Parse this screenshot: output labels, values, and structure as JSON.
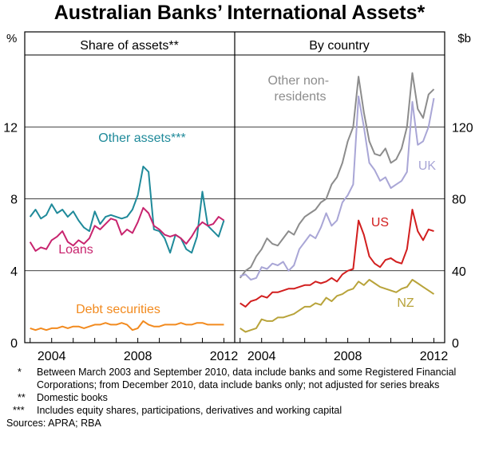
{
  "title": "Australian Banks’ International Assets*",
  "left_unit": "%",
  "right_unit": "$b",
  "footnotes": [
    {
      "mark": "*",
      "text": "Between March 2003 and September 2010, data include banks and some Registered Financial Corporations; from December 2010, data include banks only; not adjusted for series breaks"
    },
    {
      "mark": "**",
      "text": "Domestic books"
    },
    {
      "mark": "***",
      "text": "Includes equity shares, participations, derivatives and working capital"
    }
  ],
  "sources": "Sources: APRA; RBA",
  "chart_data": [
    {
      "type": "line",
      "panel_title": "Share of assets**",
      "xlim": [
        2002.75,
        2012.5
      ],
      "xticks": [
        2004,
        2008,
        2012
      ],
      "xtick_labels": [
        "2004",
        "2008",
        "2012"
      ],
      "ylim": [
        0,
        16
      ],
      "yticks": [
        0,
        4,
        8,
        12
      ],
      "ytick_labels": [
        "0",
        "4",
        "8",
        "12"
      ],
      "series": [
        {
          "name": "Other assets***",
          "color": "#1f8a9a",
          "x": [
            2003.0,
            2003.25,
            2003.5,
            2003.75,
            2004.0,
            2004.25,
            2004.5,
            2004.75,
            2005.0,
            2005.25,
            2005.5,
            2005.75,
            2006.0,
            2006.25,
            2006.5,
            2006.75,
            2007.0,
            2007.25,
            2007.5,
            2007.75,
            2008.0,
            2008.25,
            2008.5,
            2008.75,
            2009.0,
            2009.25,
            2009.5,
            2009.75,
            2010.0,
            2010.25,
            2010.5,
            2010.75,
            2011.0,
            2011.25,
            2011.5,
            2011.75,
            2012.0
          ],
          "values": [
            7.0,
            7.4,
            6.9,
            7.1,
            7.7,
            7.2,
            7.4,
            7.0,
            7.3,
            6.8,
            6.4,
            6.2,
            7.3,
            6.6,
            7.0,
            7.1,
            7.0,
            6.9,
            7.0,
            7.4,
            8.2,
            9.8,
            9.5,
            6.3,
            6.2,
            5.8,
            5.0,
            6.0,
            5.8,
            5.2,
            5.0,
            5.9,
            8.4,
            6.5,
            6.2,
            5.9,
            6.8
          ]
        },
        {
          "name": "Loans",
          "color": "#c8246e",
          "x": [
            2003.0,
            2003.25,
            2003.5,
            2003.75,
            2004.0,
            2004.25,
            2004.5,
            2004.75,
            2005.0,
            2005.25,
            2005.5,
            2005.75,
            2006.0,
            2006.25,
            2006.5,
            2006.75,
            2007.0,
            2007.25,
            2007.5,
            2007.75,
            2008.0,
            2008.25,
            2008.5,
            2008.75,
            2009.0,
            2009.25,
            2009.5,
            2009.75,
            2010.0,
            2010.25,
            2010.5,
            2010.75,
            2011.0,
            2011.25,
            2011.5,
            2011.75,
            2012.0
          ],
          "values": [
            5.6,
            5.1,
            5.3,
            5.2,
            5.7,
            5.9,
            6.2,
            5.6,
            5.4,
            5.7,
            5.5,
            5.8,
            6.5,
            6.3,
            6.6,
            6.9,
            6.8,
            6.0,
            6.3,
            6.1,
            6.7,
            7.5,
            7.2,
            6.5,
            6.3,
            6.0,
            5.9,
            6.0,
            5.8,
            5.5,
            5.9,
            6.4,
            6.7,
            6.5,
            6.6,
            7.0,
            6.8
          ]
        },
        {
          "name": "Debt securities",
          "color": "#f28a1e",
          "x": [
            2003.0,
            2003.25,
            2003.5,
            2003.75,
            2004.0,
            2004.25,
            2004.5,
            2004.75,
            2005.0,
            2005.25,
            2005.5,
            2005.75,
            2006.0,
            2006.25,
            2006.5,
            2006.75,
            2007.0,
            2007.25,
            2007.5,
            2007.75,
            2008.0,
            2008.25,
            2008.5,
            2008.75,
            2009.0,
            2009.25,
            2009.5,
            2009.75,
            2010.0,
            2010.25,
            2010.5,
            2010.75,
            2011.0,
            2011.25,
            2011.5,
            2011.75,
            2012.0
          ],
          "values": [
            0.8,
            0.7,
            0.8,
            0.7,
            0.8,
            0.8,
            0.9,
            0.8,
            0.9,
            0.9,
            0.8,
            0.9,
            1.0,
            1.0,
            1.1,
            1.0,
            1.0,
            1.1,
            1.0,
            0.7,
            0.8,
            1.2,
            1.0,
            0.9,
            0.9,
            1.0,
            1.0,
            1.0,
            1.1,
            1.0,
            1.0,
            1.1,
            1.1,
            1.0,
            1.0,
            1.0,
            1.0
          ]
        }
      ],
      "labels": [
        "Other assets***",
        "Loans",
        "Debt securities"
      ]
    },
    {
      "type": "line",
      "panel_title": "By country",
      "xlim": [
        2002.75,
        2012.5
      ],
      "xticks": [
        2004,
        2008,
        2012
      ],
      "xtick_labels": [
        "2004",
        "2008",
        "2012"
      ],
      "ylim": [
        0,
        160
      ],
      "yticks": [
        0,
        40,
        80,
        120
      ],
      "ytick_labels": [
        "0",
        "40",
        "80",
        "120"
      ],
      "series": [
        {
          "name": "Other non-residents",
          "color": "#8c8c8c",
          "x": [
            2003.0,
            2003.25,
            2003.5,
            2003.75,
            2004.0,
            2004.25,
            2004.5,
            2004.75,
            2005.0,
            2005.25,
            2005.5,
            2005.75,
            2006.0,
            2006.25,
            2006.5,
            2006.75,
            2007.0,
            2007.25,
            2007.5,
            2007.75,
            2008.0,
            2008.25,
            2008.5,
            2008.75,
            2009.0,
            2009.25,
            2009.5,
            2009.75,
            2010.0,
            2010.25,
            2010.5,
            2010.75,
            2011.0,
            2011.25,
            2011.5,
            2011.75,
            2012.0
          ],
          "values": [
            36,
            40,
            42,
            48,
            52,
            58,
            55,
            54,
            58,
            62,
            60,
            66,
            70,
            72,
            74,
            78,
            80,
            88,
            92,
            100,
            112,
            120,
            148,
            128,
            112,
            105,
            104,
            108,
            100,
            102,
            108,
            120,
            150,
            130,
            125,
            138,
            141
          ]
        },
        {
          "name": "UK",
          "color": "#a9a6d6",
          "x": [
            2003.0,
            2003.25,
            2003.5,
            2003.75,
            2004.0,
            2004.25,
            2004.5,
            2004.75,
            2005.0,
            2005.25,
            2005.5,
            2005.75,
            2006.0,
            2006.25,
            2006.5,
            2006.75,
            2007.0,
            2007.25,
            2007.5,
            2007.75,
            2008.0,
            2008.25,
            2008.5,
            2008.75,
            2009.0,
            2009.25,
            2009.5,
            2009.75,
            2010.0,
            2010.25,
            2010.5,
            2010.75,
            2011.0,
            2011.25,
            2011.5,
            2011.75,
            2012.0
          ],
          "values": [
            37,
            38,
            35,
            36,
            42,
            41,
            44,
            43,
            45,
            40,
            43,
            52,
            56,
            60,
            58,
            64,
            72,
            65,
            68,
            78,
            82,
            88,
            137,
            120,
            100,
            96,
            90,
            92,
            86,
            88,
            90,
            95,
            134,
            110,
            112,
            120,
            136
          ]
        },
        {
          "name": "US",
          "color": "#d21e1e",
          "x": [
            2003.0,
            2003.25,
            2003.5,
            2003.75,
            2004.0,
            2004.25,
            2004.5,
            2004.75,
            2005.0,
            2005.25,
            2005.5,
            2005.75,
            2006.0,
            2006.25,
            2006.5,
            2006.75,
            2007.0,
            2007.25,
            2007.5,
            2007.75,
            2008.0,
            2008.25,
            2008.5,
            2008.75,
            2009.0,
            2009.25,
            2009.5,
            2009.75,
            2010.0,
            2010.25,
            2010.5,
            2010.75,
            2011.0,
            2011.25,
            2011.5,
            2011.75,
            2012.0
          ],
          "values": [
            22,
            20,
            23,
            24,
            26,
            25,
            28,
            28,
            29,
            30,
            30,
            31,
            32,
            32,
            34,
            33,
            34,
            36,
            34,
            38,
            40,
            41,
            68,
            60,
            48,
            44,
            42,
            46,
            47,
            45,
            44,
            52,
            74,
            62,
            57,
            63,
            62
          ]
        },
        {
          "name": "NZ",
          "color": "#b8a33a",
          "x": [
            2003.0,
            2003.25,
            2003.5,
            2003.75,
            2004.0,
            2004.25,
            2004.5,
            2004.75,
            2005.0,
            2005.25,
            2005.5,
            2005.75,
            2006.0,
            2006.25,
            2006.5,
            2006.75,
            2007.0,
            2007.25,
            2007.5,
            2007.75,
            2008.0,
            2008.25,
            2008.5,
            2008.75,
            2009.0,
            2009.25,
            2009.5,
            2009.75,
            2010.0,
            2010.25,
            2010.5,
            2010.75,
            2011.0,
            2011.25,
            2011.5,
            2011.75,
            2012.0
          ],
          "values": [
            8,
            6,
            7,
            8,
            13,
            12,
            12,
            14,
            14,
            15,
            16,
            18,
            20,
            20,
            22,
            21,
            25,
            23,
            26,
            27,
            29,
            30,
            34,
            32,
            35,
            33,
            31,
            30,
            29,
            28,
            30,
            31,
            35,
            33,
            31,
            29,
            27
          ]
        }
      ],
      "labels": [
        "Other non-residents",
        "UK",
        "US",
        "NZ"
      ]
    }
  ]
}
